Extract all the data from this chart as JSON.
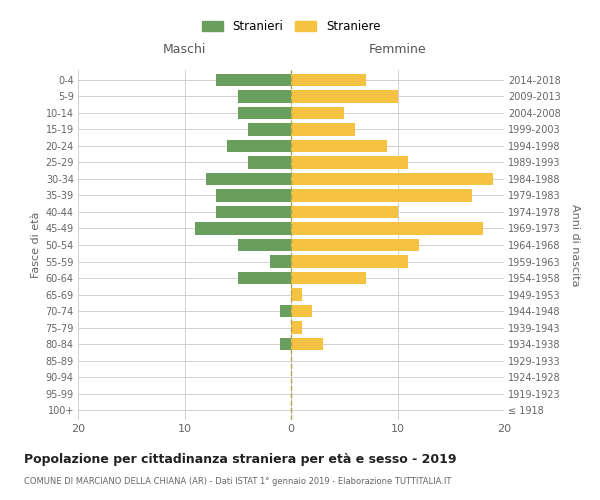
{
  "age_groups": [
    "100+",
    "95-99",
    "90-94",
    "85-89",
    "80-84",
    "75-79",
    "70-74",
    "65-69",
    "60-64",
    "55-59",
    "50-54",
    "45-49",
    "40-44",
    "35-39",
    "30-34",
    "25-29",
    "20-24",
    "15-19",
    "10-14",
    "5-9",
    "0-4"
  ],
  "birth_years": [
    "≤ 1918",
    "1919-1923",
    "1924-1928",
    "1929-1933",
    "1934-1938",
    "1939-1943",
    "1944-1948",
    "1949-1953",
    "1954-1958",
    "1959-1963",
    "1964-1968",
    "1969-1973",
    "1974-1978",
    "1979-1983",
    "1984-1988",
    "1989-1993",
    "1994-1998",
    "1999-2003",
    "2004-2008",
    "2009-2013",
    "2014-2018"
  ],
  "maschi": [
    0,
    0,
    0,
    0,
    1,
    0,
    1,
    0,
    5,
    2,
    5,
    9,
    7,
    7,
    8,
    4,
    6,
    4,
    5,
    5,
    7
  ],
  "femmine": [
    0,
    0,
    0,
    0,
    3,
    1,
    2,
    1,
    7,
    11,
    12,
    18,
    10,
    17,
    19,
    11,
    9,
    6,
    5,
    10,
    7
  ],
  "color_maschi": "#6a9e5c",
  "color_femmine": "#f5c242",
  "title": "Popolazione per cittadinanza straniera per età e sesso - 2019",
  "subtitle": "COMUNE DI MARCIANO DELLA CHIANA (AR) - Dati ISTAT 1° gennaio 2019 - Elaborazione TUTTITALIA.IT",
  "xlabel_left": "Maschi",
  "xlabel_right": "Femmine",
  "ylabel_left": "Fasce di età",
  "ylabel_right": "Anni di nascita",
  "legend_maschi": "Stranieri",
  "legend_femmine": "Straniere",
  "xlim": 20,
  "background_color": "#ffffff",
  "grid_color": "#d0d0d0",
  "axis_color": "#999999"
}
